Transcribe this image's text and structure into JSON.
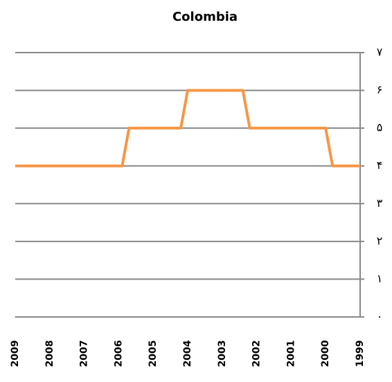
{
  "chart_data": {
    "type": "line",
    "title": "Colombia",
    "x": [
      2009,
      2005.9,
      2005.7,
      2004.2,
      2004.0,
      2002.4,
      2002.2,
      2000.0,
      1999.8,
      1999
    ],
    "series": [
      {
        "name": "Colombia",
        "color": "#f79646",
        "values": [
          4,
          4,
          5,
          5,
          6,
          6,
          5,
          5,
          4,
          4
        ]
      }
    ],
    "xlim": [
      2009,
      1999
    ],
    "xticks": [
      2009,
      2008,
      2007,
      2006,
      2005,
      2004,
      2003,
      2002,
      2001,
      2000,
      1999
    ],
    "ylim": [
      0,
      7
    ],
    "yticks": [
      {
        "value": 0,
        "label": "۰"
      },
      {
        "value": 1,
        "label": "۱"
      },
      {
        "value": 2,
        "label": "۲"
      },
      {
        "value": 3,
        "label": "۳"
      },
      {
        "value": 4,
        "label": "۴"
      },
      {
        "value": 5,
        "label": "۵"
      },
      {
        "value": 6,
        "label": "۶"
      },
      {
        "value": 7,
        "label": "۷"
      }
    ],
    "grid": true
  }
}
